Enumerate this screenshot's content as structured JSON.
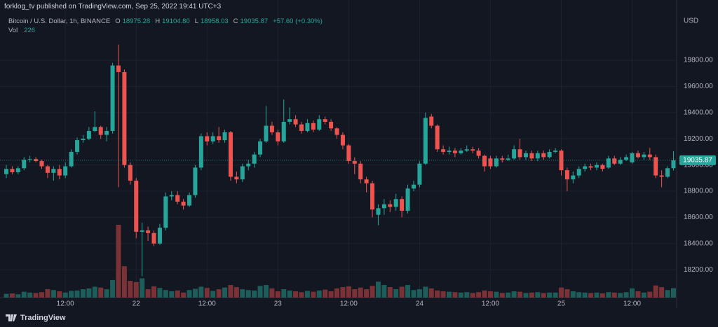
{
  "chart_data": {
    "type": "candlestick",
    "publisher": "forklog_tv published on TradingView.com, Sep 25, 2022 19:41 UTC+3",
    "title": "Bitcoin / U.S. Dollar, 1h, BINANCE",
    "legend_values": [
      {
        "key": "O",
        "value": 18975.28
      },
      {
        "key": "H",
        "value": 19104.8,
        "label": "19104.80"
      },
      {
        "key": "L",
        "value": 18958.03
      },
      {
        "key": "C",
        "value": 19035.87
      }
    ],
    "change": "+57.60 (+0.30%)",
    "volume_label": "Vol",
    "y_axis_label": "USD",
    "categories": [
      null,
      null,
      null,
      null,
      null,
      null,
      null,
      null,
      null,
      null,
      "12:00",
      null,
      null,
      null,
      null,
      null,
      null,
      null,
      null,
      null,
      null,
      null,
      "22",
      null,
      null,
      null,
      null,
      null,
      null,
      null,
      null,
      null,
      null,
      null,
      "12:00",
      null,
      null,
      null,
      null,
      null,
      null,
      null,
      null,
      null,
      null,
      null,
      "23",
      null,
      null,
      null,
      null,
      null,
      null,
      null,
      null,
      null,
      null,
      null,
      "12:00",
      null,
      null,
      null,
      null,
      null,
      null,
      null,
      null,
      null,
      null,
      null,
      "24",
      null,
      null,
      null,
      null,
      null,
      null,
      null,
      null,
      null,
      null,
      null,
      "12:00",
      null,
      null,
      null,
      null,
      null,
      null,
      null,
      null,
      null,
      null,
      null,
      "25",
      null,
      null,
      null,
      null,
      null,
      null,
      null,
      null,
      null,
      null,
      null,
      "12:00",
      null,
      null,
      null,
      null,
      null,
      null,
      null
    ],
    "open": [
      18930,
      18970,
      18945,
      18975,
      19040,
      19045,
      19030,
      18990,
      18940,
      18970,
      18920,
      18990,
      19100,
      19190,
      19200,
      19260,
      19290,
      19230,
      19260,
      19760,
      19710,
      19000,
      18880,
      18490,
      18500,
      18480,
      18400,
      18520,
      18760,
      18770,
      18720,
      18690,
      18770,
      18980,
      19220,
      19180,
      19220,
      19190,
      19250,
      18910,
      18890,
      18990,
      19010,
      19080,
      19180,
      19300,
      19250,
      19180,
      19330,
      19350,
      19310,
      19260,
      19320,
      19270,
      19350,
      19330,
      19280,
      19230,
      19150,
      19030,
      19010,
      18890,
      18860,
      18620,
      18670,
      18700,
      18680,
      18740,
      18650,
      18820,
      18850,
      19010,
      19370,
      19300,
      19120,
      19100,
      19110,
      19090,
      19110,
      19120,
      19110,
      19070,
      19050,
      18990,
      19050,
      19040,
      19050,
      19120,
      19060,
      19090,
      19050,
      19090,
      19060,
      19100,
      19110,
      18960,
      18890,
      18920,
      18970,
      18990,
      18980,
      19000,
      18980,
      19050,
      19010,
      19040,
      19020,
      19090,
      19060,
      19080,
      19060,
      18920,
      18910,
      18975.28
    ],
    "high": [
      19000,
      18990,
      18990,
      19060,
      19070,
      19060,
      19040,
      19000,
      18990,
      19000,
      19020,
      19120,
      19210,
      19230,
      19290,
      19410,
      19300,
      19290,
      19780,
      19920,
      19730,
      19020,
      18900,
      18560,
      18530,
      18500,
      18550,
      18790,
      18800,
      18800,
      18740,
      18790,
      19000,
      19240,
      19250,
      19250,
      19290,
      19270,
      19260,
      18950,
      19010,
      19040,
      19100,
      19200,
      19450,
      19330,
      19270,
      19500,
      19440,
      19380,
      19330,
      19350,
      19340,
      19380,
      19370,
      19350,
      19290,
      19250,
      19160,
      19060,
      19030,
      18910,
      18880,
      18700,
      18740,
      18730,
      18780,
      18760,
      18850,
      18880,
      19030,
      19400,
      19390,
      19310,
      19150,
      19140,
      19130,
      19130,
      19150,
      19140,
      19130,
      19080,
      19070,
      19070,
      19070,
      19080,
      19150,
      19200,
      19110,
      19110,
      19110,
      19110,
      19120,
      19130,
      19120,
      18980,
      18950,
      18990,
      19010,
      19010,
      19020,
      19010,
      19070,
      19070,
      19060,
      19080,
      19100,
      19110,
      19100,
      19130,
      19080,
      18960,
      18990,
      19104.8
    ],
    "low": [
      18900,
      18930,
      18930,
      18960,
      19020,
      19020,
      18970,
      18900,
      18880,
      18890,
      18900,
      18980,
      19080,
      19170,
      19190,
      19250,
      19200,
      19180,
      19240,
      18830,
      18980,
      18850,
      18440,
      18150,
      18420,
      18380,
      18390,
      18500,
      18730,
      18700,
      18660,
      18680,
      18750,
      18960,
      19150,
      19160,
      19170,
      19170,
      18880,
      18860,
      18870,
      18960,
      18980,
      19060,
      19170,
      19230,
      19150,
      19170,
      19310,
      19290,
      19240,
      19250,
      19250,
      19260,
      19310,
      19260,
      19200,
      19120,
      19010,
      18930,
      18860,
      18790,
      18600,
      18540,
      18620,
      18640,
      18650,
      18600,
      18630,
      18800,
      18830,
      19000,
      19280,
      19100,
      19080,
      19080,
      19060,
      19080,
      19100,
      19090,
      19050,
      18950,
      18970,
      18980,
      19020,
      19030,
      19040,
      19040,
      19040,
      19030,
      19030,
      19040,
      19050,
      19090,
      18920,
      18800,
      18860,
      18900,
      18950,
      18960,
      18960,
      18950,
      18970,
      19000,
      19000,
      19030,
      19010,
      19050,
      19040,
      19040,
      18900,
      18830,
      18900,
      18958.03
    ],
    "close": [
      18970,
      18945,
      18975,
      19040,
      19045,
      19030,
      18990,
      18940,
      18970,
      18920,
      18990,
      19100,
      19190,
      19200,
      19260,
      19290,
      19230,
      19260,
      19760,
      19710,
      19000,
      18880,
      18490,
      18500,
      18480,
      18400,
      18520,
      18760,
      18770,
      18720,
      18690,
      18770,
      18980,
      19220,
      19180,
      19220,
      19190,
      19250,
      18910,
      18890,
      18990,
      19010,
      19080,
      19180,
      19300,
      19250,
      19180,
      19330,
      19350,
      19310,
      19260,
      19320,
      19270,
      19350,
      19330,
      19280,
      19230,
      19150,
      19030,
      19010,
      18890,
      18860,
      18660,
      18670,
      18700,
      18680,
      18740,
      18650,
      18820,
      18850,
      19010,
      19360,
      19300,
      19120,
      19100,
      19110,
      19090,
      19110,
      19120,
      19110,
      19070,
      18990,
      18990,
      19050,
      19040,
      19050,
      19120,
      19060,
      19090,
      19050,
      19090,
      19060,
      19100,
      19110,
      18960,
      18890,
      18920,
      18970,
      18990,
      18980,
      19000,
      18970,
      19050,
      19010,
      19040,
      19060,
      19090,
      19060,
      19080,
      19060,
      18920,
      18910,
      18975,
      19035.87
    ],
    "volume": [
      90,
      100,
      80,
      140,
      120,
      110,
      130,
      200,
      180,
      150,
      120,
      160,
      170,
      200,
      220,
      260,
      240,
      200,
      420,
      1740,
      750,
      400,
      370,
      460,
      200,
      270,
      230,
      180,
      150,
      170,
      120,
      180,
      210,
      260,
      230,
      160,
      200,
      240,
      300,
      250,
      200,
      180,
      170,
      280,
      300,
      220,
      150,
      200,
      170,
      150,
      130,
      160,
      140,
      170,
      190,
      150,
      220,
      250,
      270,
      200,
      240,
      200,
      280,
      380,
      300,
      250,
      200,
      260,
      300,
      180,
      200,
      260,
      220,
      170,
      150,
      140,
      130,
      120,
      130,
      110,
      130,
      170,
      150,
      140,
      110,
      120,
      150,
      140,
      110,
      120,
      130,
      110,
      120,
      120,
      240,
      200,
      150,
      130,
      120,
      110,
      120,
      100,
      130,
      120,
      110,
      130,
      220,
      150,
      120,
      140,
      290,
      250,
      180,
      226
    ],
    "up_color": "#26a69a",
    "down_color": "#ef5350",
    "up_volume_color": "#1d5e5a",
    "down_volume_color": "#7a3236",
    "ylim": [
      17987,
      20100
    ],
    "yticks": [
      {
        "value": 18200,
        "label": "18200.00"
      },
      {
        "value": 18400,
        "label": "18400.00"
      },
      {
        "value": 18600,
        "label": "18600.00"
      },
      {
        "value": 18800,
        "label": "18800.00"
      },
      {
        "value": 19000,
        "label": "19000.00"
      },
      {
        "value": 19200,
        "label": "19200.00"
      },
      {
        "value": 19400,
        "label": "19400.00"
      },
      {
        "value": 19600,
        "label": "19600.00"
      },
      {
        "value": 19800,
        "label": "19800.00"
      }
    ],
    "grid": true,
    "last_price_line": true
  },
  "footer": {
    "brand": "TradingView"
  }
}
